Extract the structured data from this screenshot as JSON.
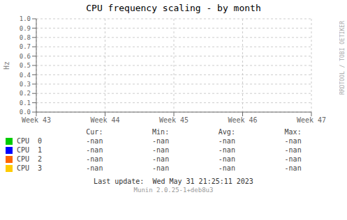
{
  "chart_data": {
    "type": "line",
    "title": "CPU frequency scaling - by month",
    "ylabel": "Hz",
    "categories": [
      "Week 43",
      "Week 44",
      "Week 45",
      "Week 46",
      "Week 47"
    ],
    "series": [
      {
        "name": "CPU  0",
        "color": "#00cc00",
        "values": [
          null,
          null,
          null,
          null,
          null
        ],
        "table_values": [
          "-nan",
          "-nan",
          "-nan",
          "-nan"
        ]
      },
      {
        "name": "CPU  1",
        "color": "#0000ff",
        "values": [
          null,
          null,
          null,
          null,
          null
        ],
        "table_values": [
          "-nan",
          "-nan",
          "-nan",
          "-nan"
        ]
      },
      {
        "name": "CPU  2",
        "color": "#ff6600",
        "values": [
          null,
          null,
          null,
          null,
          null
        ],
        "table_values": [
          "-nan",
          "-nan",
          "-nan",
          "-nan"
        ]
      },
      {
        "name": "CPU  3",
        "color": "#ffcc00",
        "values": [
          null,
          null,
          null,
          null,
          null
        ],
        "table_values": [
          "-nan",
          "-nan",
          "-nan",
          "-nan"
        ]
      }
    ],
    "table_headers": [
      "Cur:",
      "Min:",
      "Avg:",
      "Max:"
    ],
    "ylim": [
      0.0,
      1.0
    ],
    "yticks": [
      {
        "value": 0.0,
        "label": "0.0"
      },
      0.1,
      0.2,
      0.3,
      0.4,
      0.5,
      0.6,
      0.7,
      0.8,
      0.9,
      {
        "value": 1.0,
        "label": "1.0"
      }
    ],
    "grid": true,
    "legend": "bottom",
    "annotations": [
      "Last update:  Wed May 31 21:25:11 2023",
      "Munin 2.0.25-1+deb8u3",
      "RRDTOOL / TOBI OETIKER"
    ]
  }
}
